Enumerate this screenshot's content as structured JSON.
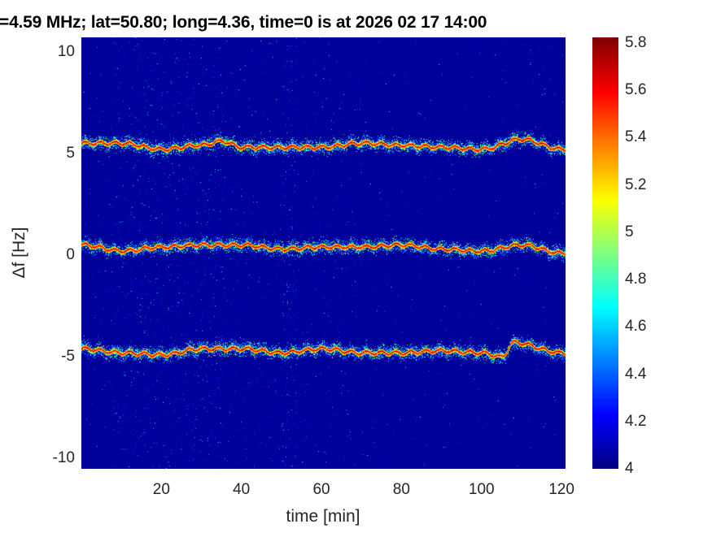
{
  "chart_data": {
    "type": "heatmap",
    "title": "=4.59 MHz;  lat=50.80; long=4.36, time=0 is at 2026 02 17 14:00",
    "xlabel": "time [min]",
    "ylabel": "Δf [Hz]",
    "xlim": [
      0,
      121
    ],
    "ylim": [
      -10.5,
      10.7
    ],
    "xticks": [
      "20",
      "40",
      "60",
      "80",
      "100",
      "120"
    ],
    "yticks": [
      "10",
      "5",
      "0",
      "-5",
      "-10"
    ],
    "colormap": "jet",
    "clim": [
      4,
      5.8
    ],
    "colorbar_ticks": [
      "5.8",
      "5.6",
      "5.4",
      "5.2",
      "5",
      "4.8",
      "4.6",
      "4.4",
      "4.2",
      "4"
    ],
    "background_level": 4.05,
    "traces": [
      {
        "x": [
          0,
          10,
          20,
          30,
          35,
          40,
          50,
          60,
          70,
          80,
          90,
          100,
          110,
          120
        ],
        "y": [
          5.5,
          5.5,
          5.2,
          5.4,
          5.6,
          5.3,
          5.3,
          5.3,
          5.5,
          5.4,
          5.3,
          5.2,
          5.7,
          5.2
        ]
      },
      {
        "x": [
          0,
          10,
          20,
          30,
          40,
          50,
          60,
          70,
          80,
          90,
          100,
          110,
          120
        ],
        "y": [
          0.5,
          0.2,
          0.4,
          0.5,
          0.5,
          0.3,
          0.4,
          0.4,
          0.5,
          0.3,
          0.2,
          0.5,
          0.1
        ]
      },
      {
        "x": [
          0,
          10,
          20,
          30,
          40,
          50,
          60,
          70,
          80,
          90,
          100,
          105,
          108,
          120
        ],
        "y": [
          -4.6,
          -4.8,
          -4.9,
          -4.6,
          -4.6,
          -4.8,
          -4.6,
          -4.8,
          -4.8,
          -4.7,
          -4.8,
          -5.0,
          -4.3,
          -4.8
        ]
      }
    ]
  }
}
